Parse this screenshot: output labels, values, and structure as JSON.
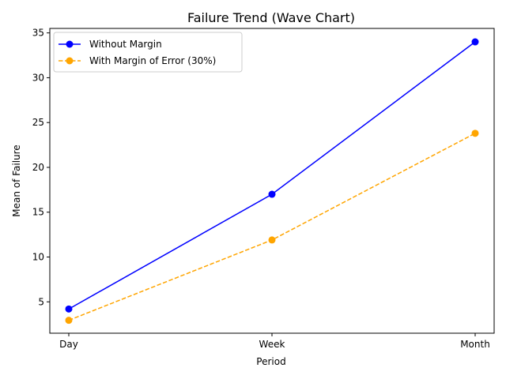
{
  "chart_data": {
    "type": "line",
    "title": "Failure Trend (Wave Chart)",
    "xlabel": "Period",
    "ylabel": "Mean of Failure",
    "categories": [
      "Day",
      "Week",
      "Month"
    ],
    "ylim": [
      1.5,
      35.5
    ],
    "yticks": [
      5,
      10,
      15,
      20,
      25,
      30,
      35
    ],
    "grid": false,
    "legend_position": "top-left",
    "series": [
      {
        "name": "Without Margin",
        "values": [
          4.2,
          17.0,
          34.0
        ],
        "color": "#0000ff",
        "dash": false
      },
      {
        "name": "With Margin of Error (30%)",
        "values": [
          2.94,
          11.9,
          23.8
        ],
        "color": "#ffa500",
        "dash": true
      }
    ]
  }
}
